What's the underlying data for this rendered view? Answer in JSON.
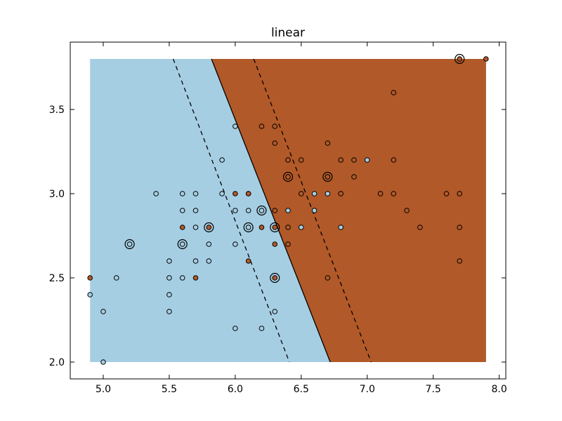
{
  "chart_data": {
    "type": "scatter",
    "title": "linear",
    "xlabel": "",
    "ylabel": "",
    "xlim": [
      4.75,
      8.05
    ],
    "ylim": [
      1.9,
      3.9
    ],
    "x_ticks": [
      "5.0",
      "5.5",
      "6.0",
      "6.5",
      "7.0",
      "7.5",
      "8.0"
    ],
    "y_ticks": [
      "2.0",
      "2.5",
      "3.0",
      "3.5"
    ],
    "grid": false,
    "legend": "none",
    "colors": {
      "class_0": "#a6cee3",
      "class_1": "#b15928",
      "edge": "#000000"
    },
    "decision_region": {
      "x_range": [
        4.9,
        7.9
      ],
      "y_range": [
        2.0,
        3.8
      ],
      "boundary": [
        [
          5.82,
          3.8
        ],
        [
          6.72,
          2.0
        ]
      ],
      "margin_lower": [
        [
          5.53,
          3.8
        ],
        [
          6.41,
          2.0
        ]
      ],
      "margin_upper": [
        [
          6.14,
          3.8
        ],
        [
          7.03,
          2.0
        ]
      ],
      "left_class": "class_0",
      "right_class": "class_1"
    },
    "points_class_0": [
      [
        4.9,
        2.4
      ],
      [
        5.0,
        2.3
      ],
      [
        5.0,
        2.0
      ],
      [
        5.1,
        2.5
      ],
      [
        5.2,
        2.7
      ],
      [
        5.4,
        3.0
      ],
      [
        5.5,
        2.6
      ],
      [
        5.5,
        2.5
      ],
      [
        5.5,
        2.4
      ],
      [
        5.5,
        2.3
      ],
      [
        5.6,
        3.0
      ],
      [
        5.6,
        2.9
      ],
      [
        5.6,
        2.7
      ],
      [
        5.6,
        2.5
      ],
      [
        5.7,
        3.0
      ],
      [
        5.7,
        2.9
      ],
      [
        5.7,
        2.8
      ],
      [
        5.7,
        2.6
      ],
      [
        5.8,
        2.7
      ],
      [
        5.8,
        2.6
      ],
      [
        5.9,
        3.2
      ],
      [
        5.9,
        3.0
      ],
      [
        6.0,
        3.4
      ],
      [
        6.0,
        2.9
      ],
      [
        6.0,
        2.7
      ],
      [
        6.0,
        2.2
      ],
      [
        6.1,
        3.0
      ],
      [
        6.1,
        2.9
      ],
      [
        6.1,
        2.8
      ],
      [
        6.2,
        2.9
      ],
      [
        6.2,
        2.2
      ],
      [
        6.3,
        2.3
      ],
      [
        6.4,
        2.9
      ],
      [
        6.6,
        3.0
      ],
      [
        6.5,
        2.8
      ],
      [
        6.6,
        2.9
      ],
      [
        6.7,
        3.0
      ],
      [
        6.7,
        3.1
      ],
      [
        6.8,
        2.8
      ],
      [
        7.0,
        3.2
      ]
    ],
    "points_class_1": [
      [
        4.9,
        2.5
      ],
      [
        5.6,
        2.8
      ],
      [
        5.7,
        2.5
      ],
      [
        5.8,
        2.8
      ],
      [
        6.0,
        3.0
      ],
      [
        6.1,
        3.0
      ],
      [
        6.1,
        2.6
      ],
      [
        6.2,
        3.4
      ],
      [
        6.2,
        2.8
      ],
      [
        6.3,
        3.4
      ],
      [
        6.3,
        3.3
      ],
      [
        6.3,
        2.9
      ],
      [
        6.3,
        2.8
      ],
      [
        6.3,
        2.7
      ],
      [
        6.3,
        2.5
      ],
      [
        6.4,
        3.2
      ],
      [
        6.4,
        3.1
      ],
      [
        6.4,
        2.8
      ],
      [
        6.4,
        2.7
      ],
      [
        6.5,
        3.2
      ],
      [
        6.5,
        3.0
      ],
      [
        6.7,
        3.3
      ],
      [
        6.7,
        3.1
      ],
      [
        6.7,
        2.5
      ],
      [
        6.8,
        3.2
      ],
      [
        6.8,
        3.0
      ],
      [
        6.9,
        3.2
      ],
      [
        6.9,
        3.1
      ],
      [
        7.1,
        3.0
      ],
      [
        7.2,
        3.6
      ],
      [
        7.2,
        3.2
      ],
      [
        7.2,
        3.0
      ],
      [
        7.3,
        2.9
      ],
      [
        7.4,
        2.8
      ],
      [
        7.6,
        3.0
      ],
      [
        7.7,
        3.8
      ],
      [
        7.7,
        3.0
      ],
      [
        7.7,
        2.8
      ],
      [
        7.7,
        2.6
      ],
      [
        7.9,
        3.8
      ]
    ],
    "support_vectors": [
      [
        5.2,
        2.7
      ],
      [
        5.6,
        2.7
      ],
      [
        5.8,
        2.8
      ],
      [
        6.1,
        2.8
      ],
      [
        6.2,
        2.9
      ],
      [
        6.3,
        2.8
      ],
      [
        6.3,
        2.5
      ],
      [
        6.4,
        3.1
      ],
      [
        6.7,
        3.1
      ],
      [
        7.7,
        3.8
      ]
    ]
  }
}
